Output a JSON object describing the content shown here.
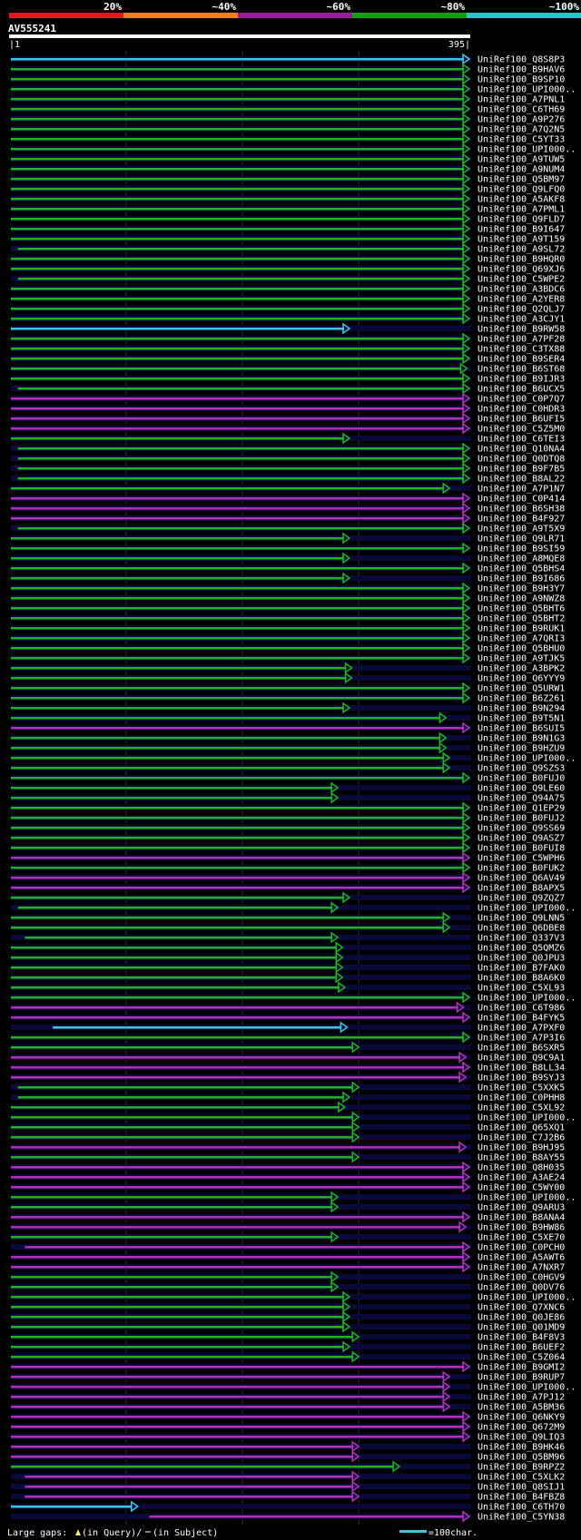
{
  "query_name": "AV555241",
  "ruler": {
    "start_label": "|1",
    "end_label": "395|"
  },
  "scale": {
    "labels": [
      "20%",
      "~40%",
      "~60%",
      "~80%",
      "~100%"
    ],
    "colors": [
      "#e8141e",
      "#f07e1e",
      "#9a1e96",
      "#10a010",
      "#20c8c8"
    ]
  },
  "legend": {
    "gaps_label": "Large gaps:",
    "query_text": "(in Query)/",
    "subject_text": "(in Subject)",
    "scale_text": "=100char."
  },
  "chart_data": {
    "type": "alignment",
    "query_length": 395,
    "color_key": {
      "g": "#1eb41e",
      "m": "#b432b4",
      "c": "#3cc8dc"
    },
    "hits": [
      {
        "name": "UniRef100_Q8S8P3",
        "start": 1,
        "end": 395,
        "color": "c"
      },
      {
        "name": "UniRef100_B9HAV6",
        "start": 1,
        "end": 395,
        "color": "g"
      },
      {
        "name": "UniRef100_B9SP10",
        "start": 1,
        "end": 395,
        "color": "g"
      },
      {
        "name": "UniRef100_UPI000..",
        "start": 1,
        "end": 395,
        "color": "g"
      },
      {
        "name": "UniRef100_A7PNL1",
        "start": 1,
        "end": 395,
        "color": "g"
      },
      {
        "name": "UniRef100_C6TH69",
        "start": 1,
        "end": 395,
        "color": "g"
      },
      {
        "name": "UniRef100_A9P276",
        "start": 1,
        "end": 395,
        "color": "g"
      },
      {
        "name": "UniRef100_A7Q2N5",
        "start": 1,
        "end": 395,
        "color": "g"
      },
      {
        "name": "UniRef100_C5YT33",
        "start": 1,
        "end": 395,
        "color": "g"
      },
      {
        "name": "UniRef100_UPI000..",
        "start": 1,
        "end": 395,
        "color": "g"
      },
      {
        "name": "UniRef100_A9TUW5",
        "start": 1,
        "end": 395,
        "color": "g"
      },
      {
        "name": "UniRef100_A9NUM4",
        "start": 1,
        "end": 395,
        "color": "g"
      },
      {
        "name": "UniRef100_Q5BM97",
        "start": 1,
        "end": 395,
        "color": "g"
      },
      {
        "name": "UniRef100_Q9LFQ0",
        "start": 1,
        "end": 395,
        "color": "g"
      },
      {
        "name": "UniRef100_A5AKF8",
        "start": 1,
        "end": 395,
        "color": "g"
      },
      {
        "name": "UniRef100_A7PML1",
        "start": 1,
        "end": 395,
        "color": "g"
      },
      {
        "name": "UniRef100_Q9FLD7",
        "start": 1,
        "end": 395,
        "color": "g"
      },
      {
        "name": "UniRef100_B9I647",
        "start": 1,
        "end": 395,
        "color": "g"
      },
      {
        "name": "UniRef100_A9T159",
        "start": 1,
        "end": 395,
        "color": "g"
      },
      {
        "name": "UniRef100_A9SL72",
        "start": 7,
        "end": 395,
        "color": "g"
      },
      {
        "name": "UniRef100_B9HQR0",
        "start": 1,
        "end": 395,
        "color": "g"
      },
      {
        "name": "UniRef100_Q69XJ6",
        "start": 1,
        "end": 395,
        "color": "g"
      },
      {
        "name": "UniRef100_C5WPE2",
        "start": 7,
        "end": 395,
        "color": "g"
      },
      {
        "name": "UniRef100_A3BDC6",
        "start": 1,
        "end": 395,
        "color": "g"
      },
      {
        "name": "UniRef100_A2YER8",
        "start": 1,
        "end": 395,
        "color": "g"
      },
      {
        "name": "UniRef100_Q2QLJ7",
        "start": 1,
        "end": 395,
        "color": "g"
      },
      {
        "name": "UniRef100_A3CJY1",
        "start": 1,
        "end": 395,
        "color": "g"
      },
      {
        "name": "UniRef100_B9RW58",
        "start": 1,
        "end": 292,
        "color": "c"
      },
      {
        "name": "UniRef100_A7PF28",
        "start": 1,
        "end": 395,
        "color": "g"
      },
      {
        "name": "UniRef100_C3TX88",
        "start": 1,
        "end": 395,
        "color": "g"
      },
      {
        "name": "UniRef100_B9SER4",
        "start": 1,
        "end": 395,
        "color": "g"
      },
      {
        "name": "UniRef100_B6ST68",
        "start": 1,
        "end": 393,
        "color": "g"
      },
      {
        "name": "UniRef100_B9IJR3",
        "start": 1,
        "end": 395,
        "color": "g"
      },
      {
        "name": "UniRef100_B6UCX5",
        "start": 7,
        "end": 395,
        "color": "g"
      },
      {
        "name": "UniRef100_C0P7Q7",
        "start": 1,
        "end": 395,
        "color": "m"
      },
      {
        "name": "UniRef100_C0HDR3",
        "start": 1,
        "end": 395,
        "color": "m"
      },
      {
        "name": "UniRef100_B6UFI5",
        "start": 1,
        "end": 395,
        "color": "m"
      },
      {
        "name": "UniRef100_C5Z5M0",
        "start": 1,
        "end": 395,
        "color": "m"
      },
      {
        "name": "UniRef100_C6TEI3",
        "start": 1,
        "end": 292,
        "color": "g"
      },
      {
        "name": "UniRef100_Q10NA4",
        "start": 7,
        "end": 395,
        "color": "g"
      },
      {
        "name": "UniRef100_Q0DTQ8",
        "start": 7,
        "end": 395,
        "color": "g"
      },
      {
        "name": "UniRef100_B9F7B5",
        "start": 7,
        "end": 395,
        "color": "g"
      },
      {
        "name": "UniRef100_B8AL22",
        "start": 7,
        "end": 395,
        "color": "g"
      },
      {
        "name": "UniRef100_A7P1N7",
        "start": 1,
        "end": 378,
        "color": "g"
      },
      {
        "name": "UniRef100_C0P414",
        "start": 1,
        "end": 395,
        "color": "m"
      },
      {
        "name": "UniRef100_B6SH38",
        "start": 1,
        "end": 395,
        "color": "m"
      },
      {
        "name": "UniRef100_B4F927",
        "start": 1,
        "end": 395,
        "color": "m"
      },
      {
        "name": "UniRef100_A9T5X9",
        "start": 7,
        "end": 395,
        "color": "g"
      },
      {
        "name": "UniRef100_Q9LR71",
        "start": 1,
        "end": 292,
        "color": "g"
      },
      {
        "name": "UniRef100_B9SI59",
        "start": 1,
        "end": 395,
        "color": "g"
      },
      {
        "name": "UniRef100_A8MQE8",
        "start": 1,
        "end": 292,
        "color": "g"
      },
      {
        "name": "UniRef100_Q5BHS4",
        "start": 1,
        "end": 395,
        "color": "g"
      },
      {
        "name": "UniRef100_B9I686",
        "start": 1,
        "end": 292,
        "color": "g"
      },
      {
        "name": "UniRef100_B9H3Y7",
        "start": 1,
        "end": 395,
        "color": "g"
      },
      {
        "name": "UniRef100_A9NWZ8",
        "start": 1,
        "end": 395,
        "color": "g"
      },
      {
        "name": "UniRef100_Q5BHT6",
        "start": 1,
        "end": 395,
        "color": "g"
      },
      {
        "name": "UniRef100_Q5BHT2",
        "start": 1,
        "end": 395,
        "color": "g"
      },
      {
        "name": "UniRef100_B9RUK1",
        "start": 1,
        "end": 395,
        "color": "g"
      },
      {
        "name": "UniRef100_A7QRI3",
        "start": 1,
        "end": 395,
        "color": "g"
      },
      {
        "name": "UniRef100_Q5BHU0",
        "start": 1,
        "end": 395,
        "color": "g"
      },
      {
        "name": "UniRef100_A9TJK5",
        "start": 1,
        "end": 395,
        "color": "g"
      },
      {
        "name": "UniRef100_A3BPK2",
        "start": 1,
        "end": 294,
        "color": "g"
      },
      {
        "name": "UniRef100_Q6YYY9",
        "start": 1,
        "end": 294,
        "color": "g"
      },
      {
        "name": "UniRef100_Q5URW1",
        "start": 1,
        "end": 395,
        "color": "g"
      },
      {
        "name": "UniRef100_B6Z261",
        "start": 1,
        "end": 395,
        "color": "g"
      },
      {
        "name": "UniRef100_B9N294",
        "start": 1,
        "end": 292,
        "color": "g"
      },
      {
        "name": "UniRef100_B9T5N1",
        "start": 1,
        "end": 375,
        "color": "g"
      },
      {
        "name": "UniRef100_B6SUI5",
        "start": 1,
        "end": 395,
        "color": "m"
      },
      {
        "name": "UniRef100_B9N1G3",
        "start": 1,
        "end": 375,
        "color": "g"
      },
      {
        "name": "UniRef100_B9HZU9",
        "start": 1,
        "end": 375,
        "color": "g"
      },
      {
        "name": "UniRef100_UPI000..",
        "start": 1,
        "end": 378,
        "color": "g"
      },
      {
        "name": "UniRef100_Q9SZS3",
        "start": 1,
        "end": 378,
        "color": "g"
      },
      {
        "name": "UniRef100_B0FUJ0",
        "start": 1,
        "end": 395,
        "color": "g"
      },
      {
        "name": "UniRef100_Q9LE60",
        "start": 1,
        "end": 282,
        "color": "g"
      },
      {
        "name": "UniRef100_Q94A75",
        "start": 1,
        "end": 282,
        "color": "g"
      },
      {
        "name": "UniRef100_Q1EP29",
        "start": 1,
        "end": 395,
        "color": "g"
      },
      {
        "name": "UniRef100_B0FUJ2",
        "start": 1,
        "end": 395,
        "color": "g"
      },
      {
        "name": "UniRef100_Q9SS69",
        "start": 1,
        "end": 395,
        "color": "g"
      },
      {
        "name": "UniRef100_Q9ASZ7",
        "start": 1,
        "end": 395,
        "color": "g"
      },
      {
        "name": "UniRef100_B0FUI8",
        "start": 1,
        "end": 395,
        "color": "g"
      },
      {
        "name": "UniRef100_C5WPH6",
        "start": 1,
        "end": 395,
        "color": "m"
      },
      {
        "name": "UniRef100_B0FUK2",
        "start": 1,
        "end": 395,
        "color": "g"
      },
      {
        "name": "UniRef100_Q6AV49",
        "start": 1,
        "end": 395,
        "color": "m"
      },
      {
        "name": "UniRef100_B8APX5",
        "start": 1,
        "end": 395,
        "color": "m"
      },
      {
        "name": "UniRef100_Q9ZQZ7",
        "start": 1,
        "end": 292,
        "color": "g"
      },
      {
        "name": "UniRef100_UPI000..",
        "start": 7,
        "end": 282,
        "color": "g"
      },
      {
        "name": "UniRef100_Q9LNN5",
        "start": 1,
        "end": 378,
        "color": "g"
      },
      {
        "name": "UniRef100_Q6DBE8",
        "start": 1,
        "end": 378,
        "color": "g"
      },
      {
        "name": "UniRef100_Q337V3",
        "start": 13,
        "end": 282,
        "color": "g"
      },
      {
        "name": "UniRef100_Q5QMZ6",
        "start": 1,
        "end": 286,
        "color": "g"
      },
      {
        "name": "UniRef100_Q0JPU3",
        "start": 1,
        "end": 286,
        "color": "g"
      },
      {
        "name": "UniRef100_B7FAK0",
        "start": 1,
        "end": 286,
        "color": "g"
      },
      {
        "name": "UniRef100_B8A6K0",
        "start": 1,
        "end": 286,
        "color": "g"
      },
      {
        "name": "UniRef100_C5XL93",
        "start": 1,
        "end": 288,
        "color": "g"
      },
      {
        "name": "UniRef100_UPI000..",
        "start": 1,
        "end": 395,
        "color": "g"
      },
      {
        "name": "UniRef100_C6T986",
        "start": 1,
        "end": 390,
        "color": "m"
      },
      {
        "name": "UniRef100_B4FYK5",
        "start": 1,
        "end": 395,
        "color": "m"
      },
      {
        "name": "UniRef100_A7PXF0",
        "start": 37,
        "end": 290,
        "color": "c"
      },
      {
        "name": "UniRef100_A7P3I6",
        "start": 1,
        "end": 395,
        "color": "g"
      },
      {
        "name": "UniRef100_B6SXR5",
        "start": 1,
        "end": 300,
        "color": "g"
      },
      {
        "name": "UniRef100_Q9C9A1",
        "start": 1,
        "end": 392,
        "color": "m"
      },
      {
        "name": "UniRef100_B8LL34",
        "start": 1,
        "end": 395,
        "color": "m"
      },
      {
        "name": "UniRef100_B9SYJ3",
        "start": 1,
        "end": 392,
        "color": "m"
      },
      {
        "name": "UniRef100_C5XXK5",
        "start": 7,
        "end": 300,
        "color": "g"
      },
      {
        "name": "UniRef100_C0PHH8",
        "start": 7,
        "end": 292,
        "color": "g"
      },
      {
        "name": "UniRef100_C5XL92",
        "start": 1,
        "end": 288,
        "color": "g"
      },
      {
        "name": "UniRef100_UPI000..",
        "start": 1,
        "end": 300,
        "color": "g"
      },
      {
        "name": "UniRef100_Q65XQ1",
        "start": 1,
        "end": 300,
        "color": "g"
      },
      {
        "name": "UniRef100_C7J2B6",
        "start": 1,
        "end": 300,
        "color": "g"
      },
      {
        "name": "UniRef100_B9HJ95",
        "start": 1,
        "end": 392,
        "color": "m"
      },
      {
        "name": "UniRef100_B8AY55",
        "start": 1,
        "end": 300,
        "color": "g"
      },
      {
        "name": "UniRef100_Q8H035",
        "start": 1,
        "end": 395,
        "color": "m"
      },
      {
        "name": "UniRef100_A3AE24",
        "start": 1,
        "end": 395,
        "color": "m"
      },
      {
        "name": "UniRef100_C5WY00",
        "start": 1,
        "end": 395,
        "color": "m"
      },
      {
        "name": "UniRef100_UPI000..",
        "start": 1,
        "end": 282,
        "color": "g"
      },
      {
        "name": "UniRef100_Q9ARU3",
        "start": 1,
        "end": 282,
        "color": "g"
      },
      {
        "name": "UniRef100_B8ANA4",
        "start": 1,
        "end": 395,
        "color": "m"
      },
      {
        "name": "UniRef100_B9HW86",
        "start": 1,
        "end": 392,
        "color": "m"
      },
      {
        "name": "UniRef100_C5XE70",
        "start": 1,
        "end": 282,
        "color": "g"
      },
      {
        "name": "UniRef100_C0PCH0",
        "start": 13,
        "end": 395,
        "color": "m"
      },
      {
        "name": "UniRef100_A5AWT6",
        "start": 1,
        "end": 395,
        "color": "m"
      },
      {
        "name": "UniRef100_A7NXR7",
        "start": 1,
        "end": 395,
        "color": "m"
      },
      {
        "name": "UniRef100_C0HGV9",
        "start": 1,
        "end": 282,
        "color": "g"
      },
      {
        "name": "UniRef100_Q0DV76",
        "start": 1,
        "end": 282,
        "color": "g"
      },
      {
        "name": "UniRef100_UPI000..",
        "start": 1,
        "end": 292,
        "color": "g"
      },
      {
        "name": "UniRef100_Q7XNC6",
        "start": 1,
        "end": 292,
        "color": "g"
      },
      {
        "name": "UniRef100_Q0JE86",
        "start": 1,
        "end": 292,
        "color": "g"
      },
      {
        "name": "UniRef100_Q01MD9",
        "start": 1,
        "end": 292,
        "color": "g"
      },
      {
        "name": "UniRef100_B4F8V3",
        "start": 1,
        "end": 300,
        "color": "g"
      },
      {
        "name": "UniRef100_B6UEF2",
        "start": 1,
        "end": 292,
        "color": "g"
      },
      {
        "name": "UniRef100_C5Z064",
        "start": 1,
        "end": 300,
        "color": "g"
      },
      {
        "name": "UniRef100_B9GMI2",
        "start": 1,
        "end": 395,
        "color": "m"
      },
      {
        "name": "UniRef100_B9RUP7",
        "start": 1,
        "end": 378,
        "color": "m"
      },
      {
        "name": "UniRef100_UPI000..",
        "start": 1,
        "end": 378,
        "color": "m"
      },
      {
        "name": "UniRef100_A7PJ12",
        "start": 1,
        "end": 378,
        "color": "m"
      },
      {
        "name": "UniRef100_A5BM36",
        "start": 1,
        "end": 378,
        "color": "m"
      },
      {
        "name": "UniRef100_Q6NKY9",
        "start": 1,
        "end": 395,
        "color": "m"
      },
      {
        "name": "UniRef100_Q672M9",
        "start": 1,
        "end": 395,
        "color": "m"
      },
      {
        "name": "UniRef100_Q9LIQ3",
        "start": 1,
        "end": 395,
        "color": "m"
      },
      {
        "name": "UniRef100_B9HK46",
        "start": 1,
        "end": 300,
        "color": "m"
      },
      {
        "name": "UniRef100_Q5BM96",
        "start": 1,
        "end": 300,
        "color": "m"
      },
      {
        "name": "UniRef100_B9RPZ2",
        "start": 1,
        "end": 335,
        "color": "g"
      },
      {
        "name": "UniRef100_C5XLK2",
        "start": 13,
        "end": 300,
        "color": "m"
      },
      {
        "name": "UniRef100_Q8SIJ1",
        "start": 13,
        "end": 300,
        "color": "m"
      },
      {
        "name": "UniRef100_B4FBZ8",
        "start": 13,
        "end": 300,
        "color": "m"
      },
      {
        "name": "UniRef100_C6TH70",
        "start": 1,
        "end": 110,
        "color": "c"
      },
      {
        "name": "UniRef100_C5YN38",
        "start": 120,
        "end": 395,
        "color": "m"
      }
    ]
  }
}
